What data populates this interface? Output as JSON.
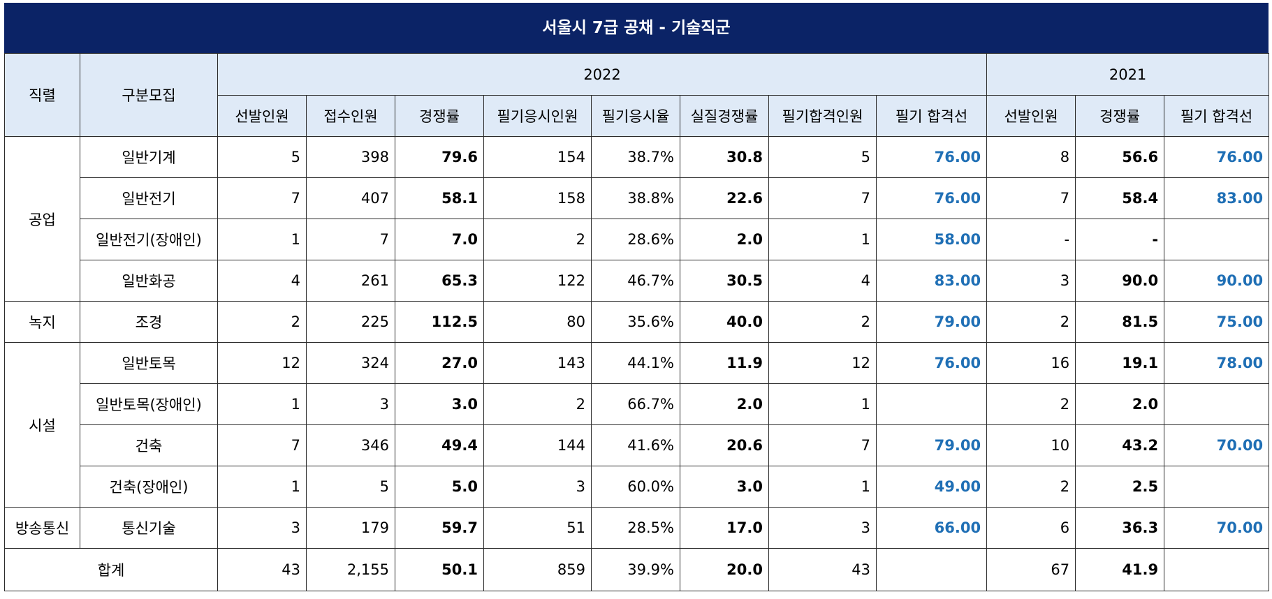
{
  "title": "서울시 7급 공채 - 기술직군",
  "colors": {
    "title_bg": "#0b2366",
    "header_bg": "#dfeaf7",
    "cutoff_text": "#1f6fb5"
  },
  "header": {
    "col_group": "직렬",
    "col_subgroup": "구분모집",
    "year_2022": "2022",
    "year_2021": "2021",
    "cols_2022": [
      "선발인원",
      "접수인원",
      "경쟁률",
      "필기응시인원",
      "필기응시율",
      "실질경쟁률",
      "필기합격인원",
      "필기 합격선"
    ],
    "cols_2021": [
      "선발인원",
      "경쟁률",
      "필기 합격선"
    ]
  },
  "groups": [
    {
      "name": "공업",
      "rows": [
        {
          "sub": "일반기계",
          "v": [
            "5",
            "398",
            "79.6",
            "154",
            "38.7%",
            "30.8",
            "5",
            "76.00",
            "8",
            "56.6",
            "76.00"
          ]
        },
        {
          "sub": "일반전기",
          "v": [
            "7",
            "407",
            "58.1",
            "158",
            "38.8%",
            "22.6",
            "7",
            "76.00",
            "7",
            "58.4",
            "83.00"
          ]
        },
        {
          "sub": "일반전기(장애인)",
          "v": [
            "1",
            "7",
            "7.0",
            "2",
            "28.6%",
            "2.0",
            "1",
            "58.00",
            "-",
            "-",
            ""
          ]
        },
        {
          "sub": "일반화공",
          "v": [
            "4",
            "261",
            "65.3",
            "122",
            "46.7%",
            "30.5",
            "4",
            "83.00",
            "3",
            "90.0",
            "90.00"
          ]
        }
      ]
    },
    {
      "name": "녹지",
      "rows": [
        {
          "sub": "조경",
          "v": [
            "2",
            "225",
            "112.5",
            "80",
            "35.6%",
            "40.0",
            "2",
            "79.00",
            "2",
            "81.5",
            "75.00"
          ]
        }
      ]
    },
    {
      "name": "시설",
      "rows": [
        {
          "sub": "일반토목",
          "v": [
            "12",
            "324",
            "27.0",
            "143",
            "44.1%",
            "11.9",
            "12",
            "76.00",
            "16",
            "19.1",
            "78.00"
          ]
        },
        {
          "sub": "일반토목(장애인)",
          "v": [
            "1",
            "3",
            "3.0",
            "2",
            "66.7%",
            "2.0",
            "1",
            "",
            "2",
            "2.0",
            ""
          ]
        },
        {
          "sub": "건축",
          "v": [
            "7",
            "346",
            "49.4",
            "144",
            "41.6%",
            "20.6",
            "7",
            "79.00",
            "10",
            "43.2",
            "70.00"
          ]
        },
        {
          "sub": "건축(장애인)",
          "v": [
            "1",
            "5",
            "5.0",
            "3",
            "60.0%",
            "3.0",
            "1",
            "49.00",
            "2",
            "2.5",
            ""
          ]
        }
      ]
    },
    {
      "name": "방송통신",
      "rows": [
        {
          "sub": "통신기술",
          "v": [
            "3",
            "179",
            "59.7",
            "51",
            "28.5%",
            "17.0",
            "3",
            "66.00",
            "6",
            "36.3",
            "70.00"
          ]
        }
      ]
    }
  ],
  "total": {
    "label": "합계",
    "v": [
      "43",
      "2,155",
      "50.1",
      "859",
      "39.9%",
      "20.0",
      "43",
      "",
      "67",
      "41.9",
      ""
    ]
  }
}
